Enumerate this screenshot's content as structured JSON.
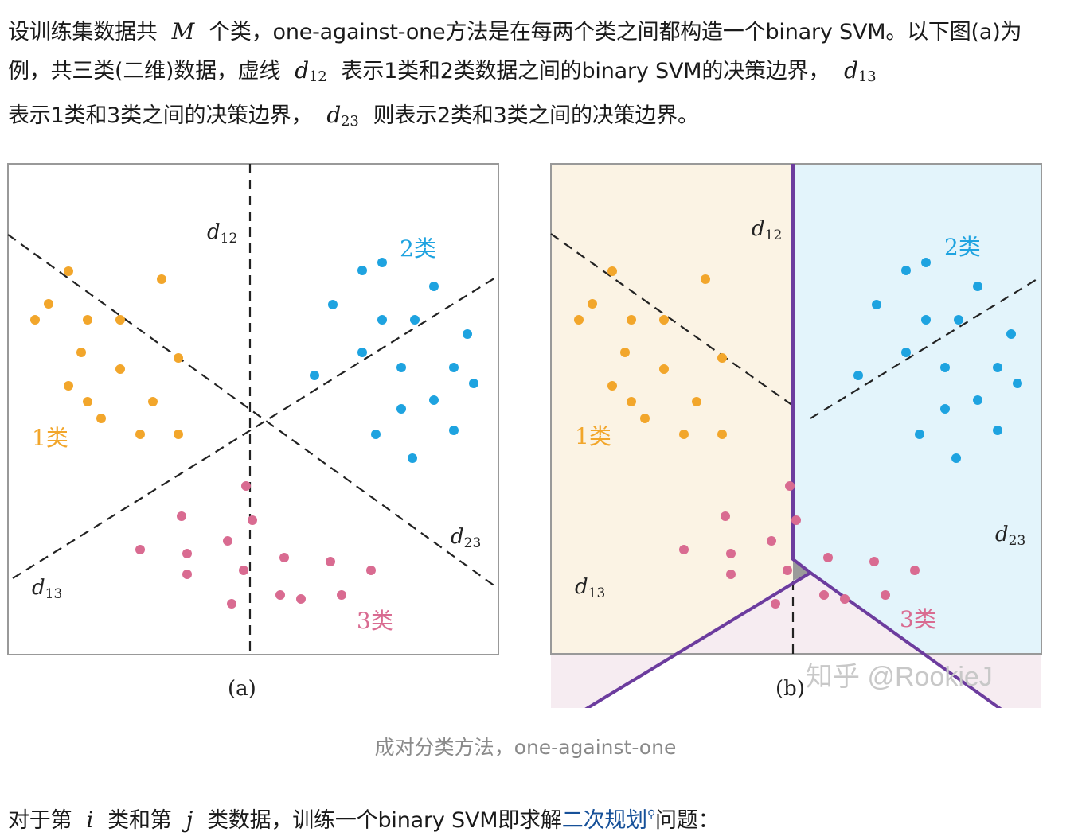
{
  "intro": {
    "p1_a": "设训练集数据共",
    "M": "M",
    "p1_b": "个类，one-against-one方法是在每两个类之间都构造一个binary SVM。以下图(a)为例，共三类(二维)数据，虚线",
    "d12_d": "d",
    "d12_sub": "12",
    "p1_c": "表示1类和2类数据之间的binary SVM的决策边界，",
    "d13_d": "d",
    "d13_sub": "13",
    "p1_d": "表示1类和3类之间的决策边界，",
    "d23_d": "d",
    "d23_sub": "23",
    "p1_e": "则表示2类和3类之间的决策边界。"
  },
  "figure": {
    "panel_a": {
      "label": "(a)",
      "line_labels": {
        "d12": "d",
        "d12_sub": "12",
        "d13": "d",
        "d13_sub": "13",
        "d23": "d",
        "d23_sub": "23"
      },
      "class_labels": {
        "c1": "1类",
        "c2": "2类",
        "c3": "3类"
      }
    },
    "panel_b": {
      "label": "(b)",
      "line_labels": {
        "d12": "d",
        "d12_sub": "12",
        "d13": "d",
        "d13_sub": "13",
        "d23": "d",
        "d23_sub": "23"
      },
      "class_labels": {
        "c1": "1类",
        "c2": "2类",
        "c3": "3类"
      }
    },
    "watermark": "知乎 @RookieJ",
    "colors": {
      "class1": "#f2a62b",
      "class2": "#1ea3e0",
      "class3": "#d96b91",
      "region1": "#fbf3e4",
      "region2": "#e3f4fb",
      "region3": "#f6ecf1",
      "boundary": "#6c3c9e",
      "intersection": "#9a9a9a",
      "frame": "#999999"
    }
  },
  "caption": "成对分类方法，one-against-one",
  "outro": {
    "a": "对于第",
    "i": "i",
    "b": "类和第",
    "j": "j",
    "c": "类数据，训练一个binary SVM即求解",
    "link": "二次规划",
    "d": "问题："
  }
}
